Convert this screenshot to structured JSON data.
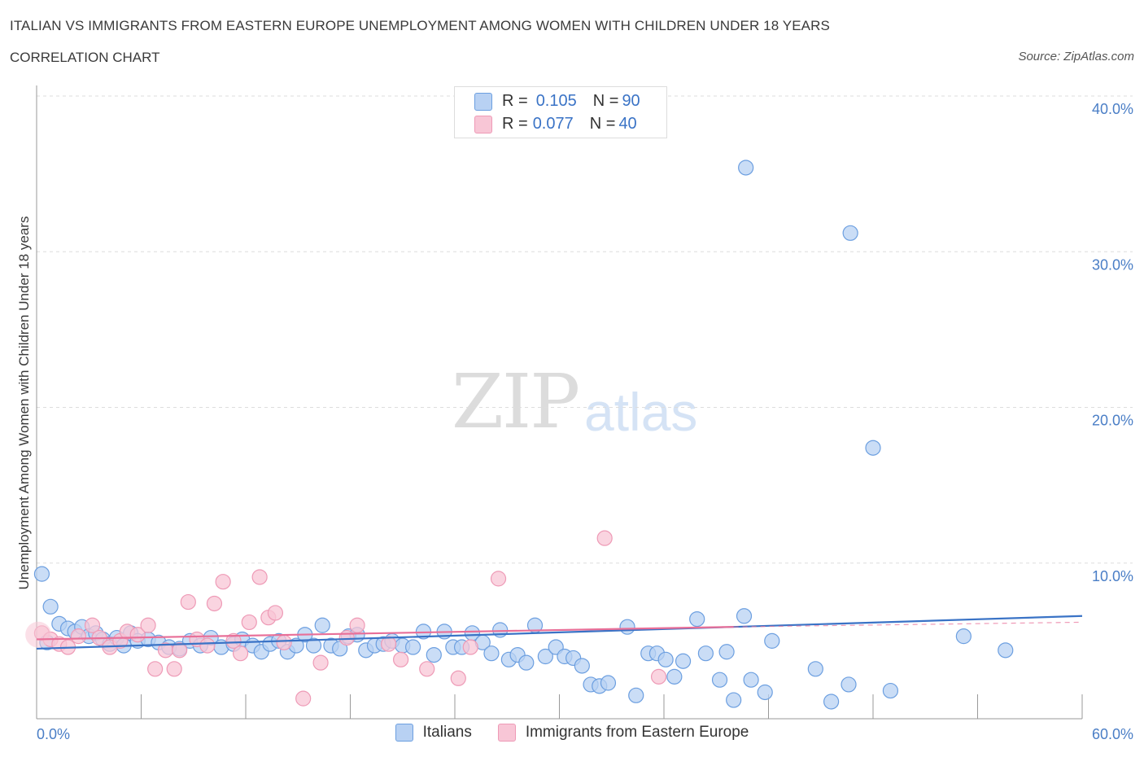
{
  "header": {
    "title": "ITALIAN VS IMMIGRANTS FROM EASTERN EUROPE UNEMPLOYMENT AMONG WOMEN WITH CHILDREN UNDER 18 YEARS",
    "subtitle": "CORRELATION CHART",
    "source": "Source: ZipAtlas.com"
  },
  "watermark": {
    "zip": "ZIP",
    "atlas": "atlas"
  },
  "legend": {
    "rows": [
      {
        "r_label": "R =",
        "r_value": "0.105",
        "n_label": "N =",
        "n_value": "90",
        "color": "#6fa0e0"
      },
      {
        "r_label": "R =",
        "r_value": "0.077",
        "n_label": "N =",
        "n_value": "40",
        "color": "#f2a8c0"
      }
    ]
  },
  "bottom_legend": {
    "items": [
      "Italians",
      "Immigrants from Eastern Europe"
    ]
  },
  "colors": {
    "italians_fill": "#b8d1f3",
    "italians_stroke": "#6c9fe0",
    "italians_line": "#3a73c6",
    "immigrants_fill": "#f8c6d6",
    "immigrants_stroke": "#ee9ab6",
    "immigrants_line": "#e86f98",
    "tick_text": "#4a7ec6",
    "grid": "#dddddd"
  },
  "chart_data": {
    "type": "scatter",
    "title": "ITALIAN VS IMMIGRANTS FROM EASTERN EUROPE UNEMPLOYMENT AMONG WOMEN WITH CHILDREN UNDER 18 YEARS",
    "subtitle": "CORRELATION CHART",
    "xlabel": "",
    "ylabel": "Unemployment Among Women with Children Under 18 years",
    "xlim": [
      0,
      60
    ],
    "ylim": [
      0,
      40
    ],
    "x_tick_labels": [
      "0.0%",
      "60.0%"
    ],
    "y_ticks": [
      10,
      20,
      30,
      40
    ],
    "y_tick_labels": [
      "10.0%",
      "20.0%",
      "30.0%",
      "40.0%"
    ],
    "grid": true,
    "legend_position": "top-center",
    "series": [
      {
        "name": "Italians",
        "r": 0.105,
        "n": 90,
        "trend": {
          "x": [
            0,
            60
          ],
          "y": [
            4.5,
            6.6
          ]
        },
        "points": [
          [
            0.3,
            9.3
          ],
          [
            0.8,
            7.2
          ],
          [
            1.3,
            6.1
          ],
          [
            1.8,
            5.8
          ],
          [
            2.2,
            5.6
          ],
          [
            2.6,
            5.9
          ],
          [
            3.0,
            5.3
          ],
          [
            3.4,
            5.5
          ],
          [
            3.8,
            5.1
          ],
          [
            4.2,
            4.8
          ],
          [
            4.6,
            5.2
          ],
          [
            5.0,
            4.7
          ],
          [
            5.4,
            5.5
          ],
          [
            5.8,
            5.0
          ],
          [
            6.4,
            5.1
          ],
          [
            7.0,
            4.9
          ],
          [
            7.6,
            4.6
          ],
          [
            8.2,
            4.5
          ],
          [
            8.8,
            5.0
          ],
          [
            9.4,
            4.7
          ],
          [
            10.0,
            5.2
          ],
          [
            10.6,
            4.6
          ],
          [
            11.3,
            4.8
          ],
          [
            11.8,
            5.1
          ],
          [
            12.4,
            4.7
          ],
          [
            12.9,
            4.3
          ],
          [
            13.4,
            4.8
          ],
          [
            13.9,
            5.0
          ],
          [
            14.4,
            4.3
          ],
          [
            14.9,
            4.7
          ],
          [
            15.4,
            5.4
          ],
          [
            15.9,
            4.7
          ],
          [
            16.4,
            6.0
          ],
          [
            16.9,
            4.7
          ],
          [
            17.4,
            4.5
          ],
          [
            17.9,
            5.3
          ],
          [
            18.4,
            5.4
          ],
          [
            18.9,
            4.4
          ],
          [
            19.4,
            4.7
          ],
          [
            19.9,
            4.8
          ],
          [
            20.4,
            5.0
          ],
          [
            21.0,
            4.7
          ],
          [
            21.6,
            4.6
          ],
          [
            22.2,
            5.6
          ],
          [
            22.8,
            4.1
          ],
          [
            23.4,
            5.6
          ],
          [
            23.9,
            4.6
          ],
          [
            24.4,
            4.6
          ],
          [
            25.0,
            5.5
          ],
          [
            25.6,
            4.9
          ],
          [
            26.1,
            4.2
          ],
          [
            26.6,
            5.7
          ],
          [
            27.1,
            3.8
          ],
          [
            27.6,
            4.1
          ],
          [
            28.1,
            3.6
          ],
          [
            28.6,
            6.0
          ],
          [
            29.2,
            4.0
          ],
          [
            29.8,
            4.6
          ],
          [
            30.3,
            4.0
          ],
          [
            30.8,
            3.9
          ],
          [
            31.3,
            3.4
          ],
          [
            31.8,
            2.2
          ],
          [
            32.3,
            2.1
          ],
          [
            32.8,
            2.3
          ],
          [
            33.9,
            5.9
          ],
          [
            34.4,
            1.5
          ],
          [
            35.1,
            4.2
          ],
          [
            35.6,
            4.2
          ],
          [
            36.1,
            3.8
          ],
          [
            36.6,
            2.7
          ],
          [
            37.1,
            3.7
          ],
          [
            37.9,
            6.4
          ],
          [
            38.4,
            4.2
          ],
          [
            39.2,
            2.5
          ],
          [
            39.6,
            4.3
          ],
          [
            40.0,
            1.2
          ],
          [
            40.6,
            6.6
          ],
          [
            41.0,
            2.5
          ],
          [
            41.8,
            1.7
          ],
          [
            42.2,
            5.0
          ],
          [
            40.7,
            35.4
          ],
          [
            46.7,
            31.2
          ],
          [
            48.0,
            17.4
          ],
          [
            44.7,
            3.2
          ],
          [
            45.6,
            1.1
          ],
          [
            46.6,
            2.2
          ],
          [
            49.0,
            1.8
          ],
          [
            53.2,
            5.3
          ],
          [
            55.6,
            4.4
          ],
          [
            0.6,
            4.9
          ]
        ]
      },
      {
        "name": "Immigrants from Eastern Europe",
        "r": 0.077,
        "n": 40,
        "trend": {
          "x": [
            0,
            40
          ],
          "y": [
            5.1,
            5.9
          ],
          "dashed_extension": {
            "x": [
              40,
              60
            ],
            "y": [
              5.9,
              6.2
            ]
          }
        },
        "points": [
          [
            0.3,
            5.5
          ],
          [
            0.8,
            5.1
          ],
          [
            1.3,
            4.8
          ],
          [
            1.8,
            4.6
          ],
          [
            2.4,
            5.3
          ],
          [
            3.2,
            6.0
          ],
          [
            3.6,
            5.2
          ],
          [
            4.2,
            4.6
          ],
          [
            4.8,
            5.0
          ],
          [
            5.2,
            5.6
          ],
          [
            5.8,
            5.4
          ],
          [
            6.4,
            6.0
          ],
          [
            6.8,
            3.2
          ],
          [
            7.4,
            4.4
          ],
          [
            7.9,
            3.2
          ],
          [
            8.2,
            4.4
          ],
          [
            8.7,
            7.5
          ],
          [
            9.2,
            5.1
          ],
          [
            9.8,
            4.7
          ],
          [
            10.2,
            7.4
          ],
          [
            10.7,
            8.8
          ],
          [
            11.3,
            5.0
          ],
          [
            11.7,
            4.2
          ],
          [
            12.2,
            6.2
          ],
          [
            12.8,
            9.1
          ],
          [
            13.3,
            6.5
          ],
          [
            13.7,
            6.8
          ],
          [
            14.2,
            4.9
          ],
          [
            15.3,
            1.3
          ],
          [
            16.3,
            3.6
          ],
          [
            17.8,
            5.2
          ],
          [
            18.4,
            6.0
          ],
          [
            20.2,
            4.8
          ],
          [
            20.9,
            3.8
          ],
          [
            22.4,
            3.2
          ],
          [
            24.2,
            2.6
          ],
          [
            24.9,
            4.6
          ],
          [
            26.5,
            9.0
          ],
          [
            32.6,
            11.6
          ],
          [
            35.7,
            2.7
          ]
        ]
      }
    ]
  }
}
